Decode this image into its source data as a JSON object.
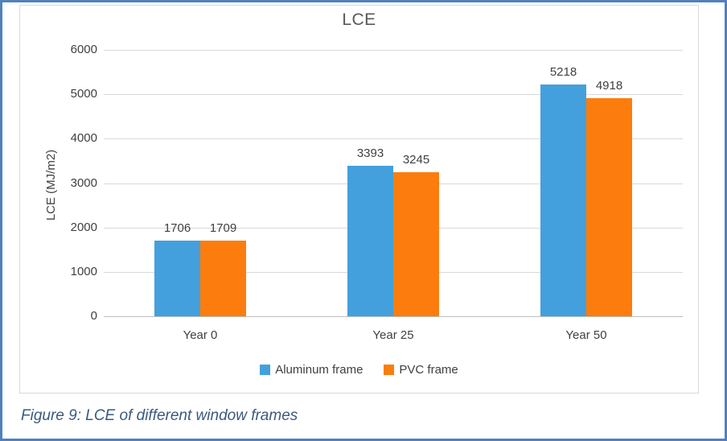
{
  "page": {
    "caption": "Figure 9: LCE of different window frames"
  },
  "chart_data": {
    "type": "bar",
    "title": "LCE",
    "xlabel": "",
    "ylabel": "LCE (MJ/m2)",
    "categories": [
      "Year 0",
      "Year 25",
      "Year 50"
    ],
    "series": [
      {
        "name": "Aluminum frame",
        "color": "#43A0DC",
        "values": [
          1706,
          3393,
          5218
        ]
      },
      {
        "name": "PVC frame",
        "color": "#FC7D0E",
        "values": [
          1709,
          3245,
          4918
        ]
      }
    ],
    "ylim": [
      0,
      6000
    ],
    "ytick_step": 1000,
    "grid": true,
    "legend_position": "bottom",
    "data_labels": true
  },
  "style": {
    "page_border": "#4F81BD",
    "frame_border": "#D9D9D9",
    "gridline": "#D9D9D9",
    "axis_line": "#BFBFBF",
    "text": "#404040",
    "title_text": "#595959",
    "caption_text": "#3A5A7E"
  }
}
